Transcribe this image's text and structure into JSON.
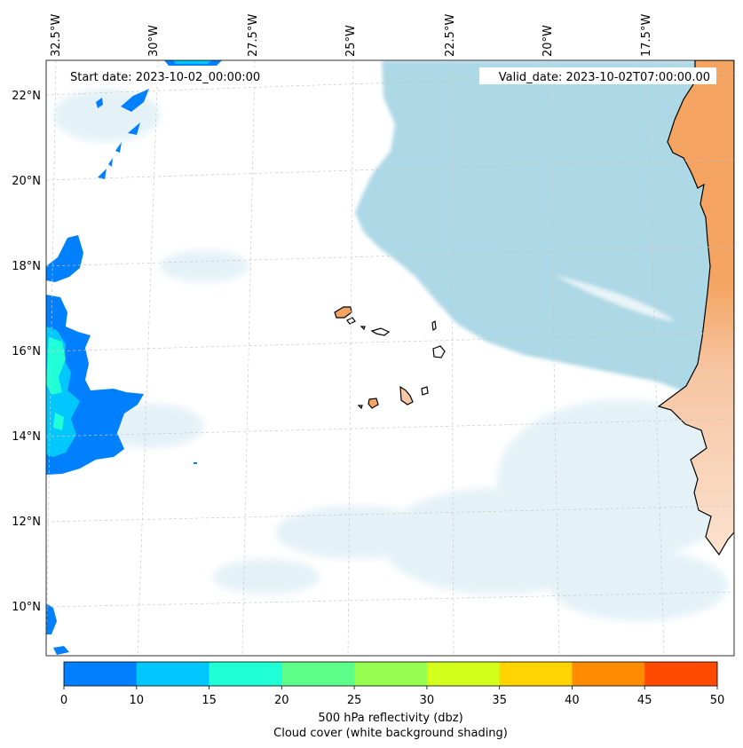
{
  "header": {
    "start_date": "Start date: 2023-10-02_00:00:00",
    "valid_date": "Valid_date: 2023-10-02T07:00:00.00"
  },
  "longitude_labels": [
    "32.5°W",
    "30°W",
    "27.5°W",
    "25°W",
    "22.5°W",
    "20°W",
    "17.5°W"
  ],
  "latitude_labels": [
    "22°N",
    "20°N",
    "18°N",
    "16°N",
    "14°N",
    "12°N",
    "10°N"
  ],
  "colorbar": {
    "ticks": [
      "0",
      "10",
      "15",
      "20",
      "25",
      "30",
      "35",
      "40",
      "45",
      "50"
    ],
    "colors": [
      "#0080ff",
      "#00c8ff",
      "#20ffd6",
      "#5cff8a",
      "#96ff50",
      "#d4ff1c",
      "#ffd400",
      "#ff8c00",
      "#ff4b00"
    ],
    "label_line1": "500 hPa reflectivity (dbz)",
    "label_line2": "Cloud cover (white background shading)"
  },
  "map_colors": {
    "cloud_cover": "#add8e6",
    "land_sahara": "#f4a460",
    "land_light": "#f7d2b4",
    "coastline": "#000000",
    "gridline": "#c8c8c8"
  }
}
